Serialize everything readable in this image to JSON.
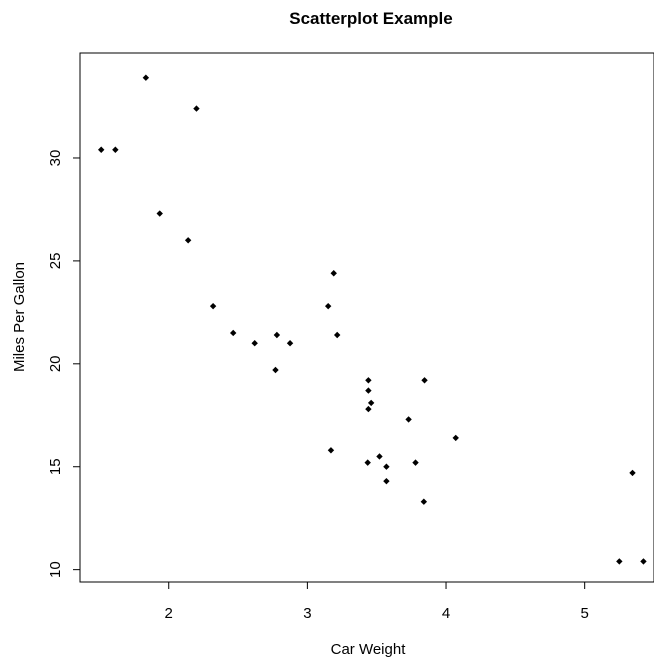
{
  "chart_data": {
    "type": "scatter",
    "title": "Scatterplot Example",
    "xlabel": "Car Weight",
    "ylabel": "Miles Per Gallon",
    "xlim": [
      1.36,
      5.5
    ],
    "ylim": [
      9.4,
      35.1
    ],
    "xticks": [
      2,
      3,
      4,
      5
    ],
    "yticks": [
      10,
      15,
      20,
      25,
      30
    ],
    "grid": false,
    "legend": "none",
    "point_color": "#000000",
    "points": [
      {
        "x": 2.62,
        "y": 21.0
      },
      {
        "x": 2.875,
        "y": 21.0
      },
      {
        "x": 2.32,
        "y": 22.8
      },
      {
        "x": 3.215,
        "y": 21.4
      },
      {
        "x": 3.44,
        "y": 18.7
      },
      {
        "x": 3.46,
        "y": 18.1
      },
      {
        "x": 3.57,
        "y": 14.3
      },
      {
        "x": 3.19,
        "y": 24.4
      },
      {
        "x": 3.15,
        "y": 22.8
      },
      {
        "x": 3.44,
        "y": 19.2
      },
      {
        "x": 3.44,
        "y": 17.8
      },
      {
        "x": 4.07,
        "y": 16.4
      },
      {
        "x": 3.73,
        "y": 17.3
      },
      {
        "x": 3.78,
        "y": 15.2
      },
      {
        "x": 5.25,
        "y": 10.4
      },
      {
        "x": 5.424,
        "y": 10.4
      },
      {
        "x": 5.345,
        "y": 14.7
      },
      {
        "x": 2.2,
        "y": 32.4
      },
      {
        "x": 1.615,
        "y": 30.4
      },
      {
        "x": 1.835,
        "y": 33.9
      },
      {
        "x": 2.465,
        "y": 21.5
      },
      {
        "x": 3.52,
        "y": 15.5
      },
      {
        "x": 3.435,
        "y": 15.2
      },
      {
        "x": 3.84,
        "y": 13.3
      },
      {
        "x": 3.845,
        "y": 19.2
      },
      {
        "x": 1.935,
        "y": 27.3
      },
      {
        "x": 2.14,
        "y": 26.0
      },
      {
        "x": 1.513,
        "y": 30.4
      },
      {
        "x": 3.17,
        "y": 15.8
      },
      {
        "x": 2.77,
        "y": 19.7
      },
      {
        "x": 3.57,
        "y": 15.0
      },
      {
        "x": 2.78,
        "y": 21.4
      }
    ]
  }
}
